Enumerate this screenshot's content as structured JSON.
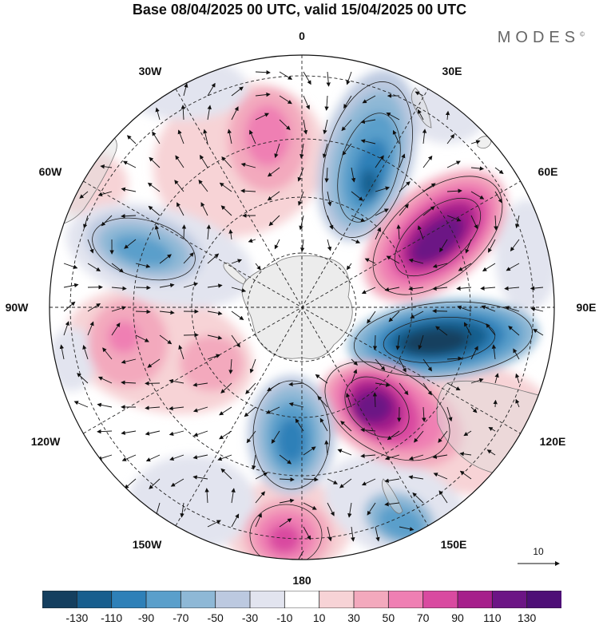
{
  "header": {
    "title": "Base 08/04/2025 00 UTC, valid 15/04/2025 00 UTC",
    "brand": "MODES",
    "brand_mark": "©"
  },
  "map": {
    "projection": "south-polar-stereographic",
    "longitude_labels": [
      {
        "id": "0",
        "text": "0"
      },
      {
        "id": "30e",
        "text": "30E"
      },
      {
        "id": "60e",
        "text": "60E"
      },
      {
        "id": "90e",
        "text": "90E"
      },
      {
        "id": "120e",
        "text": "120E"
      },
      {
        "id": "150e",
        "text": "150E"
      },
      {
        "id": "180",
        "text": "180"
      },
      {
        "id": "150w",
        "text": "150W"
      },
      {
        "id": "120w",
        "text": "120W"
      },
      {
        "id": "90w",
        "text": "90W"
      },
      {
        "id": "60w",
        "text": "60W"
      },
      {
        "id": "30w",
        "text": "30W"
      }
    ],
    "reference_vector": {
      "label": "10"
    }
  },
  "colorbar": {
    "colors": [
      "#143f5f",
      "#175e8e",
      "#2e80b8",
      "#5a9fcb",
      "#8eb8d6",
      "#bcc9e0",
      "#e2e4ef",
      "#ffffff",
      "#f7d3d6",
      "#f3a9bd",
      "#ef7fb3",
      "#d94aa0",
      "#a61f8b",
      "#6c1585",
      "#4e0f77"
    ],
    "tick_labels": [
      "-130",
      "-110",
      "-90",
      "-70",
      "-50",
      "-30",
      "-10",
      "10",
      "30",
      "50",
      "70",
      "90",
      "110",
      "130"
    ]
  }
}
